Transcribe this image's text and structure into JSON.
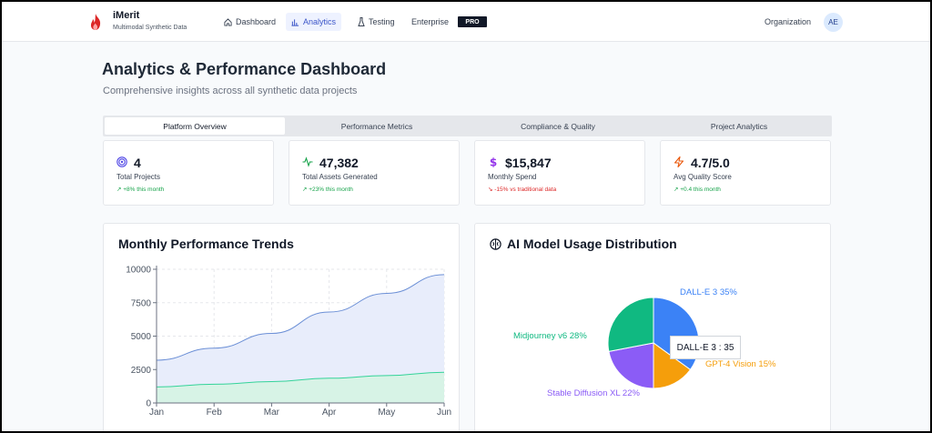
{
  "brand": {
    "name": "iMerit",
    "tagline": "Multimodal Synthetic Data"
  },
  "nav": {
    "items": [
      {
        "label": "Dashboard",
        "icon": "home-icon"
      },
      {
        "label": "Analytics",
        "icon": "bar-chart-icon",
        "active": true
      },
      {
        "label": "Testing",
        "icon": "flask-icon"
      },
      {
        "label": "Enterprise"
      }
    ],
    "pro_badge": "PRO",
    "organization": "Organization",
    "avatar": "AE"
  },
  "page": {
    "title": "Analytics & Performance Dashboard",
    "subtitle": "Comprehensive insights across all synthetic data projects"
  },
  "tabs": [
    {
      "label": "Platform Overview",
      "active": true
    },
    {
      "label": "Performance Metrics"
    },
    {
      "label": "Compliance & Quality"
    },
    {
      "label": "Project Analytics"
    }
  ],
  "kpis": [
    {
      "value": "4",
      "label": "Total Projects",
      "trend": "+8% this month",
      "icon": "target-icon",
      "color": "#4f46e5"
    },
    {
      "value": "47,382",
      "label": "Total Assets Generated",
      "trend": "+23% this month",
      "icon": "activity-icon",
      "color": "#16a34a"
    },
    {
      "value": "$15,847",
      "label": "Monthly Spend",
      "trend": "-15% vs traditional data",
      "icon": "dollar-icon",
      "color": "#9333ea"
    },
    {
      "value": "4.7/5.0",
      "label": "Avg Quality Score",
      "trend": "+0.4 this month",
      "icon": "zap-icon",
      "color": "#ea580c"
    }
  ],
  "trends_panel": {
    "title": "Monthly Performance Trends"
  },
  "usage_panel": {
    "title": "AI Model Usage Distribution",
    "icon": "brain-icon",
    "tooltip": "DALL-E 3 : 35"
  },
  "chart_data": [
    {
      "type": "area",
      "title": "Monthly Performance Trends",
      "categories": [
        "Jan",
        "Feb",
        "Mar",
        "Apr",
        "May",
        "Jun"
      ],
      "series": [
        {
          "values": [
            3200,
            4100,
            5200,
            6800,
            8200,
            9600
          ],
          "color": "#6b8fd6"
        },
        {
          "values": [
            1200,
            1400,
            1600,
            1850,
            2050,
            2300
          ],
          "color": "#34d399"
        }
      ],
      "ylim": [
        0,
        10000
      ],
      "yticks": [
        0,
        2500,
        5000,
        7500,
        10000
      ],
      "grid": true
    },
    {
      "type": "pie",
      "title": "AI Model Usage Distribution",
      "slices": [
        {
          "label": "DALL-E 3 35%",
          "value": 35,
          "color": "#3b82f6"
        },
        {
          "label": "GPT-4 Vision 15%",
          "value": 15,
          "color": "#f59e0b"
        },
        {
          "label": "Stable Diffusion XL 22%",
          "value": 22,
          "color": "#8b5cf6"
        },
        {
          "label": "Midjourney v6 28%",
          "value": 28,
          "color": "#10b981"
        }
      ]
    }
  ]
}
